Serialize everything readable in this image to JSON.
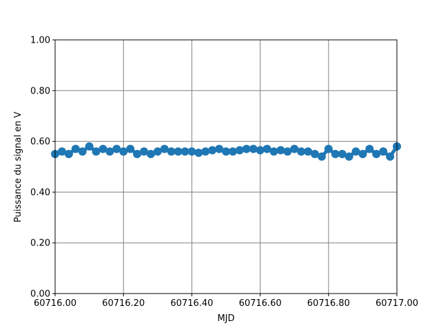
{
  "chart_data": {
    "type": "line",
    "xlabel": "MJD",
    "ylabel": "Puissance du signal en V",
    "color": "#1f77b4",
    "grid": true,
    "grid_color": "#808080",
    "xlim": [
      60716.0,
      60717.0
    ],
    "xticks": [
      {
        "value": 60716.0,
        "label": "60716.00"
      },
      {
        "value": 60716.2,
        "label": "60716.20"
      },
      {
        "value": 60716.4,
        "label": "60716.40"
      },
      {
        "value": 60716.6,
        "label": "60716.60"
      },
      {
        "value": 60716.8,
        "label": "60716.80"
      },
      {
        "value": 60717.0,
        "label": "60717.00"
      }
    ],
    "ylim": [
      0,
      1
    ],
    "yticks": [
      {
        "value": 0,
        "label": "0.00"
      },
      {
        "value": 0.2,
        "label": "0.20"
      },
      {
        "value": 0.4,
        "label": "0.40"
      },
      {
        "value": 0.6,
        "label": "0.60"
      },
      {
        "value": 0.8,
        "label": "0.80"
      },
      {
        "value": 1,
        "label": "1.00"
      }
    ],
    "x": [
      60716.0,
      60716.02,
      60716.04,
      60716.06,
      60716.08,
      60716.1,
      60716.12,
      60716.14,
      60716.16,
      60716.18,
      60716.2,
      60716.22,
      60716.24,
      60716.26,
      60716.28,
      60716.3,
      60716.32,
      60716.34,
      60716.36,
      60716.38,
      60716.4,
      60716.42,
      60716.44,
      60716.46,
      60716.48,
      60716.5,
      60716.52,
      60716.54,
      60716.56,
      60716.58,
      60716.6,
      60716.62,
      60716.64,
      60716.66,
      60716.68,
      60716.7,
      60716.72,
      60716.74,
      60716.76,
      60716.78,
      60716.8,
      60716.82,
      60716.84,
      60716.86,
      60716.88,
      60716.9,
      60716.92,
      60716.94,
      60716.96,
      60716.98,
      60717.0
    ],
    "values": [
      0.55,
      0.56,
      0.55,
      0.57,
      0.56,
      0.58,
      0.56,
      0.57,
      0.56,
      0.57,
      0.56,
      0.57,
      0.55,
      0.56,
      0.55,
      0.56,
      0.57,
      0.56,
      0.56,
      0.56,
      0.56,
      0.555,
      0.56,
      0.565,
      0.57,
      0.56,
      0.56,
      0.565,
      0.57,
      0.57,
      0.565,
      0.57,
      0.56,
      0.565,
      0.56,
      0.57,
      0.56,
      0.56,
      0.55,
      0.54,
      0.57,
      0.55,
      0.55,
      0.54,
      0.56,
      0.55,
      0.57,
      0.55,
      0.56,
      0.54,
      0.58
    ]
  }
}
